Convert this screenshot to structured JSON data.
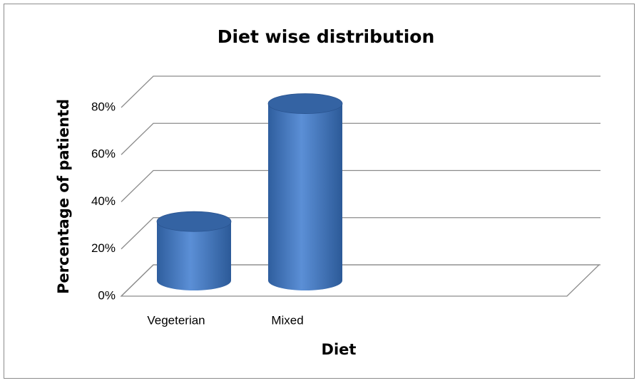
{
  "chart_data": {
    "type": "bar3d",
    "title": "Diet wise distribution",
    "x_label": "Diet",
    "y_label": "Percentage of  patientd",
    "categories": [
      "Vegeterian",
      "Mixed"
    ],
    "values": [
      25,
      75
    ],
    "color": "#4a7ec4",
    "ylim": [
      0,
      80
    ],
    "yticks": [
      {
        "value": 0,
        "label": "0%"
      },
      {
        "value": 20,
        "label": "20%"
      },
      {
        "value": 40,
        "label": "40%"
      },
      {
        "value": 60,
        "label": "60%"
      },
      {
        "value": 80,
        "label": "80%"
      }
    ],
    "grid": true
  }
}
